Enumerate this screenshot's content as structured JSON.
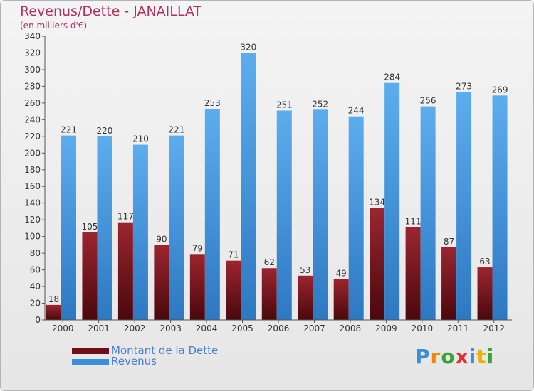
{
  "title": "Revenus/Dette - JANAILLAT",
  "subtitle": "(en milliers d'€)",
  "logo": "Proxiti",
  "colors": {
    "dette": "#6d0f14",
    "revenus": "#3b8fd8",
    "title": "#b03060",
    "legend_text": "#4a7fd6"
  },
  "chart_data": {
    "type": "bar",
    "categories": [
      "2000",
      "2001",
      "2002",
      "2003",
      "2004",
      "2005",
      "2006",
      "2007",
      "2008",
      "2009",
      "2010",
      "2011",
      "2012"
    ],
    "series": [
      {
        "name": "Montant de la Dette",
        "values": [
          18,
          105,
          117,
          90,
          79,
          71,
          62,
          53,
          49,
          134,
          111,
          87,
          63
        ]
      },
      {
        "name": "Revenus",
        "values": [
          221,
          220,
          210,
          221,
          253,
          320,
          251,
          252,
          244,
          284,
          256,
          273,
          269
        ]
      }
    ],
    "ylim": [
      0,
      340
    ],
    "yticks": [
      0,
      20,
      40,
      60,
      80,
      100,
      120,
      140,
      160,
      180,
      200,
      220,
      240,
      260,
      280,
      300,
      320,
      340
    ],
    "legend_position": "bottom-left",
    "grid": false
  }
}
